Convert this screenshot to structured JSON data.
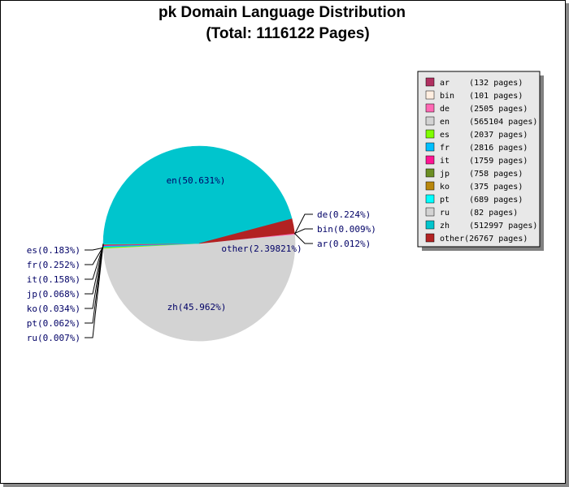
{
  "chart_data": {
    "type": "pie",
    "title": "pk Domain Language Distribution",
    "subtitle": "(Total: 1116122 Pages)",
    "legend_position": "right",
    "slices": [
      {
        "name": "ar",
        "pages": 132,
        "percent": 0.012,
        "label": "ar(0.012%)",
        "legend": "ar    (132 pages)",
        "color": "#b03060"
      },
      {
        "name": "bin",
        "pages": 101,
        "percent": 0.009,
        "label": "bin(0.009%)",
        "legend": "bin   (101 pages)",
        "color": "#ffeee0"
      },
      {
        "name": "de",
        "pages": 2505,
        "percent": 0.224,
        "label": "de(0.224%)",
        "legend": "de    (2505 pages)",
        "color": "#ff69b4"
      },
      {
        "name": "en",
        "pages": 565104,
        "percent": 50.631,
        "label": "en(50.631%)",
        "legend": "en    (565104 pages)",
        "color": "#d3d3d3"
      },
      {
        "name": "es",
        "pages": 2037,
        "percent": 0.183,
        "label": "es(0.183%)",
        "legend": "es    (2037 pages)",
        "color": "#7fff00"
      },
      {
        "name": "fr",
        "pages": 2816,
        "percent": 0.252,
        "label": "fr(0.252%)",
        "legend": "fr    (2816 pages)",
        "color": "#00bfff"
      },
      {
        "name": "it",
        "pages": 1759,
        "percent": 0.158,
        "label": "it(0.158%)",
        "legend": "it    (1759 pages)",
        "color": "#ff1493"
      },
      {
        "name": "jp",
        "pages": 758,
        "percent": 0.068,
        "label": "jp(0.068%)",
        "legend": "jp    (758 pages)",
        "color": "#6b8e23"
      },
      {
        "name": "ko",
        "pages": 375,
        "percent": 0.034,
        "label": "ko(0.034%)",
        "legend": "ko    (375 pages)",
        "color": "#b8860b"
      },
      {
        "name": "pt",
        "pages": 689,
        "percent": 0.062,
        "label": "pt(0.062%)",
        "legend": "pt    (689 pages)",
        "color": "#00ffff"
      },
      {
        "name": "ru",
        "pages": 82,
        "percent": 0.007,
        "label": "ru(0.007%)",
        "legend": "ru    (82 pages)",
        "color": "#d3d3d3"
      },
      {
        "name": "zh",
        "pages": 512997,
        "percent": 45.962,
        "label": "zh(45.962%)",
        "legend": "zh    (512997 pages)",
        "color": "#00c5cd"
      },
      {
        "name": "other",
        "pages": 26767,
        "percent": 2.39821,
        "label": "other(2.39821%)",
        "legend": "other(26767 pages)",
        "color": "#b22222"
      }
    ]
  }
}
